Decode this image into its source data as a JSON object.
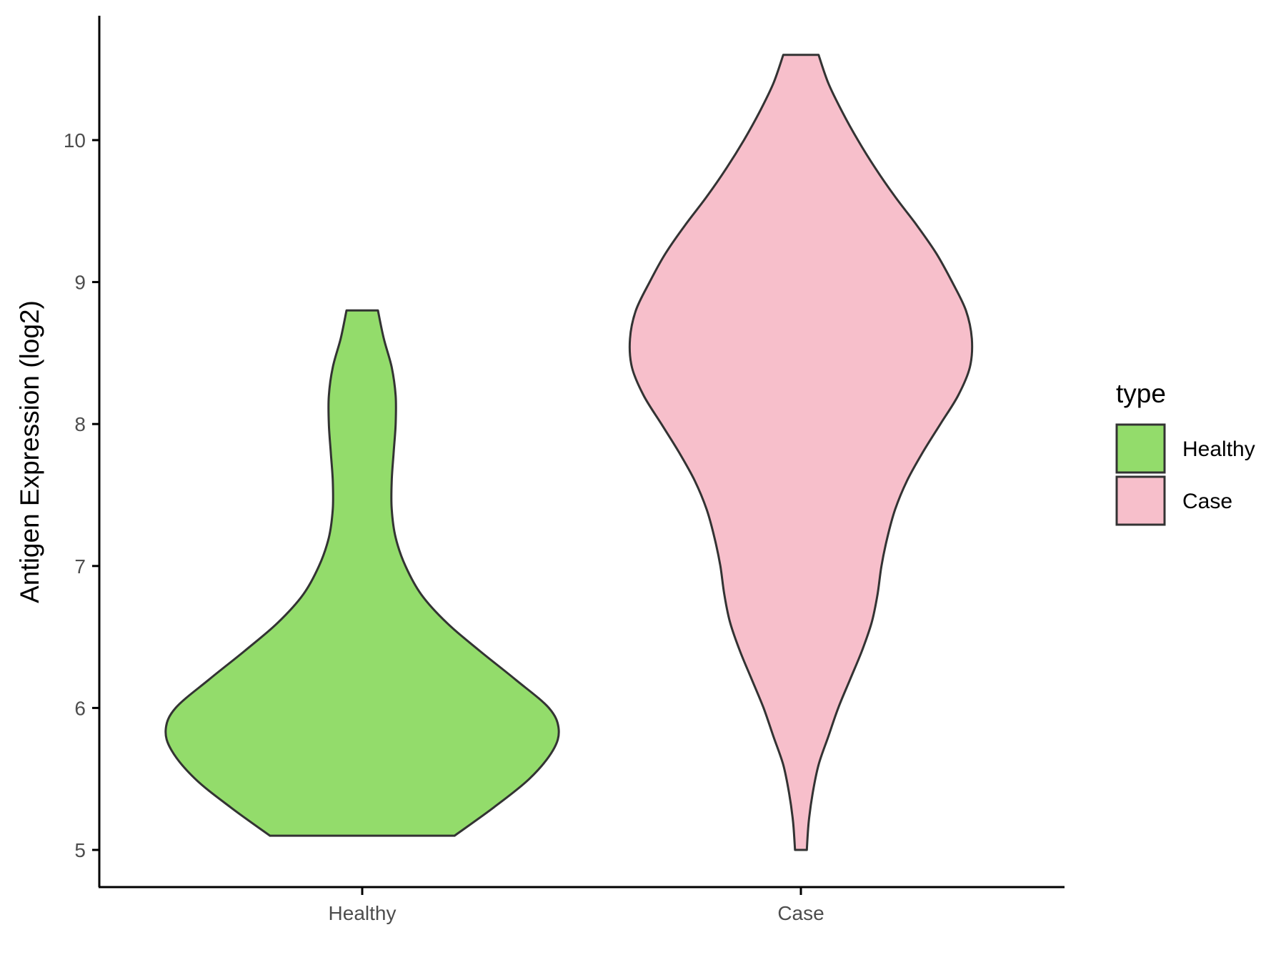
{
  "chart_data": {
    "type": "violin",
    "title": "",
    "xlabel": "",
    "ylabel": "Antigen Expression (log2)",
    "ylim": [
      4.75,
      10.9
    ],
    "yticks": [
      5,
      6,
      7,
      8,
      9,
      10
    ],
    "categories": [
      "Healthy",
      "Case"
    ],
    "grid": false,
    "legend": {
      "title": "type",
      "position": "right",
      "entries": [
        {
          "label": "Healthy",
          "color": "#93dc6b"
        },
        {
          "label": "Case",
          "color": "#f7bfcb"
        }
      ]
    },
    "series": [
      {
        "category": "Healthy",
        "color": "#93dc6b",
        "min": 5.1,
        "max": 8.8,
        "density_profile": [
          [
            5.1,
            0.47
          ],
          [
            5.3,
            0.67
          ],
          [
            5.5,
            0.85
          ],
          [
            5.7,
            0.97
          ],
          [
            5.85,
            1.0
          ],
          [
            6.0,
            0.95
          ],
          [
            6.2,
            0.78
          ],
          [
            6.4,
            0.6
          ],
          [
            6.6,
            0.43
          ],
          [
            6.8,
            0.3
          ],
          [
            7.0,
            0.22
          ],
          [
            7.2,
            0.17
          ],
          [
            7.4,
            0.15
          ],
          [
            7.6,
            0.15
          ],
          [
            7.8,
            0.16
          ],
          [
            8.0,
            0.17
          ],
          [
            8.2,
            0.17
          ],
          [
            8.4,
            0.15
          ],
          [
            8.6,
            0.11
          ],
          [
            8.8,
            0.08
          ]
        ]
      },
      {
        "category": "Case",
        "color": "#f7bfcb",
        "min": 5.0,
        "max": 10.6,
        "density_profile": [
          [
            5.0,
            0.03
          ],
          [
            5.2,
            0.04
          ],
          [
            5.4,
            0.06
          ],
          [
            5.6,
            0.09
          ],
          [
            5.8,
            0.14
          ],
          [
            6.0,
            0.19
          ],
          [
            6.2,
            0.25
          ],
          [
            6.4,
            0.31
          ],
          [
            6.6,
            0.36
          ],
          [
            6.8,
            0.39
          ],
          [
            7.0,
            0.41
          ],
          [
            7.2,
            0.44
          ],
          [
            7.4,
            0.48
          ],
          [
            7.6,
            0.54
          ],
          [
            7.8,
            0.62
          ],
          [
            8.0,
            0.71
          ],
          [
            8.2,
            0.8
          ],
          [
            8.4,
            0.86
          ],
          [
            8.6,
            0.87
          ],
          [
            8.8,
            0.84
          ],
          [
            9.0,
            0.77
          ],
          [
            9.2,
            0.69
          ],
          [
            9.4,
            0.59
          ],
          [
            9.6,
            0.48
          ],
          [
            9.8,
            0.38
          ],
          [
            10.0,
            0.29
          ],
          [
            10.2,
            0.21
          ],
          [
            10.4,
            0.14
          ],
          [
            10.6,
            0.09
          ]
        ]
      }
    ]
  }
}
